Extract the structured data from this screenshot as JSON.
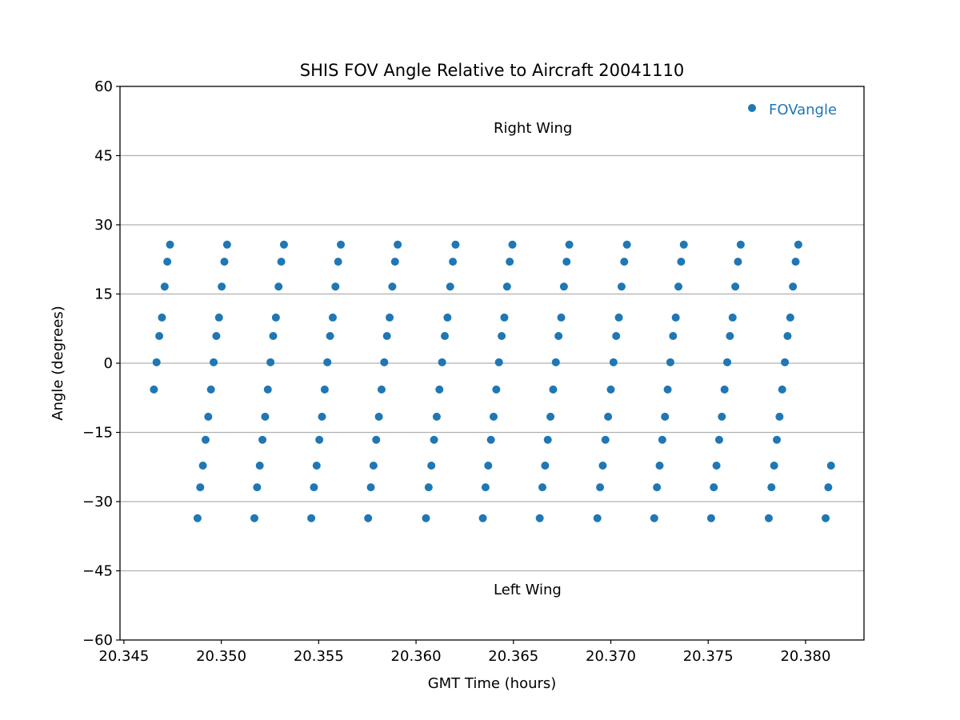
{
  "chart_data": {
    "type": "scatter",
    "title": "SHIS FOV Angle Relative to Aircraft 20041110",
    "xlabel": "GMT Time (hours)",
    "ylabel": "Angle (degrees)",
    "xlim": [
      20.3448,
      20.383
    ],
    "ylim": [
      -60,
      60
    ],
    "xticks": [
      20.345,
      20.35,
      20.355,
      20.36,
      20.365,
      20.37,
      20.375,
      20.38
    ],
    "xtick_labels": [
      "20.345",
      "20.350",
      "20.355",
      "20.360",
      "20.365",
      "20.370",
      "20.375",
      "20.380"
    ],
    "yticks": [
      60,
      45,
      30,
      15,
      0,
      -15,
      -30,
      -45,
      -60
    ],
    "ytick_labels": [
      "60",
      "45",
      "30",
      "15",
      "0",
      "−15",
      "−30",
      "−45",
      "−60"
    ],
    "grid": "horizontal",
    "legend": {
      "position": "top-right",
      "entries": [
        "FOVangle"
      ]
    },
    "annotations": [
      {
        "text": "Right Wing",
        "x": 20.3645,
        "y": 51
      },
      {
        "text": "Left Wing",
        "x": 20.3645,
        "y": -49
      }
    ],
    "series": [
      {
        "name": "FOVangle",
        "color": "#1f77b4",
        "time_step_hours": 0.000138,
        "sweep_angles": [
          -33.6,
          -26.9,
          -22.2,
          -16.6,
          -11.6,
          -5.7,
          0.2,
          5.9,
          9.9,
          16.6,
          22.0,
          25.7
        ],
        "sweeps": [
          {
            "t0": 20.34585,
            "first_index": 5,
            "last_index": 11
          },
          {
            "t0": 20.34878,
            "first_index": 0,
            "last_index": 11
          },
          {
            "t0": 20.3517,
            "first_index": 0,
            "last_index": 11
          },
          {
            "t0": 20.35462,
            "first_index": 0,
            "last_index": 11
          },
          {
            "t0": 20.35754,
            "first_index": 0,
            "last_index": 11
          },
          {
            "t0": 20.36051,
            "first_index": 0,
            "last_index": 11
          },
          {
            "t0": 20.36343,
            "first_index": 0,
            "last_index": 11
          },
          {
            "t0": 20.36635,
            "first_index": 0,
            "last_index": 11
          },
          {
            "t0": 20.36931,
            "first_index": 0,
            "last_index": 11
          },
          {
            "t0": 20.37223,
            "first_index": 0,
            "last_index": 11
          },
          {
            "t0": 20.37515,
            "first_index": 0,
            "last_index": 11
          },
          {
            "t0": 20.37811,
            "first_index": 0,
            "last_index": 11
          },
          {
            "t0": 20.38103,
            "first_index": 0,
            "last_index": 2
          }
        ]
      }
    ]
  }
}
